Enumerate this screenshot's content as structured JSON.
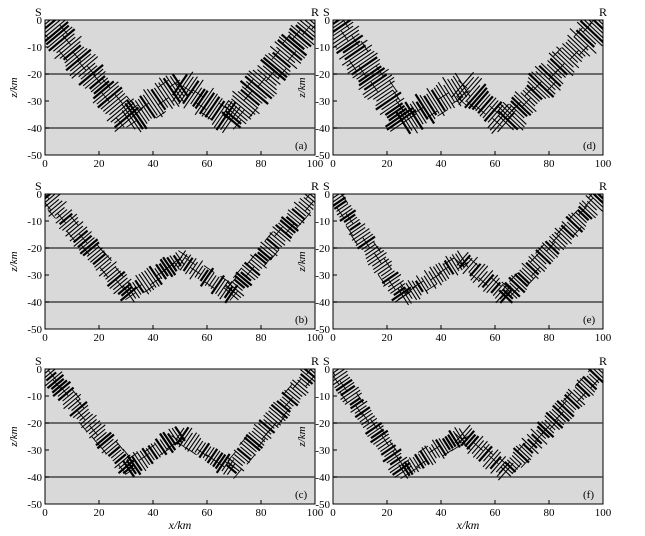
{
  "axis_text": {
    "xlabel": "x/km",
    "ylabel": "z/km",
    "source_label": "S",
    "receiver_label": "R"
  },
  "colors": {
    "panel_background": "#d9d9d9",
    "ray_color": "#000000",
    "layer_line_color": "#444444"
  },
  "chart_data": [
    {
      "type": "other",
      "panel_label": "(a)",
      "x_range": [
        0,
        100
      ],
      "z_range": [
        -50,
        0
      ],
      "x_ticks": [
        0,
        20,
        40,
        60,
        80,
        100
      ],
      "z_ticks": [
        0,
        -10,
        -20,
        -30,
        -40,
        -50
      ],
      "interfaces_z": [
        -20,
        -40
      ],
      "ray_pattern": "double-reflection",
      "x_tick_labels_shown": true
    },
    {
      "type": "other",
      "panel_label": "(d)",
      "x_range": [
        0,
        100
      ],
      "z_range": [
        -50,
        0
      ],
      "x_ticks": [
        0,
        20,
        40,
        60,
        80,
        100
      ],
      "z_ticks": [
        0,
        -10,
        -20,
        -30,
        -40,
        -50
      ],
      "interfaces_z": [
        -20,
        -40
      ],
      "ray_pattern": "double-reflection-tilted",
      "x_tick_labels_shown": true
    },
    {
      "type": "other",
      "panel_label": "(b)",
      "x_range": [
        0,
        100
      ],
      "z_range": [
        -50,
        0
      ],
      "x_ticks": [
        0,
        20,
        40,
        60,
        80,
        100
      ],
      "z_ticks": [
        0,
        -10,
        -20,
        -30,
        -40,
        -50
      ],
      "interfaces_z": [
        -20,
        -40
      ],
      "ray_pattern": "double-reflection",
      "x_tick_labels_shown": true
    },
    {
      "type": "other",
      "panel_label": "(e)",
      "x_range": [
        0,
        100
      ],
      "z_range": [
        -50,
        0
      ],
      "x_ticks": [
        0,
        20,
        40,
        60,
        80,
        100
      ],
      "z_ticks": [
        0,
        -10,
        -20,
        -30,
        -40,
        -50
      ],
      "interfaces_z": [
        -20,
        -40
      ],
      "ray_pattern": "double-reflection-tilted",
      "x_tick_labels_shown": true
    },
    {
      "type": "other",
      "panel_label": "(c)",
      "x_range": [
        0,
        100
      ],
      "z_range": [
        -50,
        0
      ],
      "x_ticks": [
        0,
        20,
        40,
        60,
        80,
        100
      ],
      "z_ticks": [
        0,
        -10,
        -20,
        -30,
        -40,
        -50
      ],
      "interfaces_z": [
        -20,
        -40
      ],
      "ray_pattern": "double-reflection",
      "x_tick_labels_shown": true
    },
    {
      "type": "other",
      "panel_label": "(f)",
      "x_range": [
        0,
        100
      ],
      "z_range": [
        -50,
        0
      ],
      "x_ticks": [
        0,
        20,
        40,
        60,
        80,
        100
      ],
      "z_ticks": [
        0,
        -10,
        -20,
        -30,
        -40,
        -50
      ],
      "interfaces_z": [
        -20,
        -40
      ],
      "ray_pattern": "double-reflection-tilted",
      "x_tick_labels_shown": true
    }
  ]
}
